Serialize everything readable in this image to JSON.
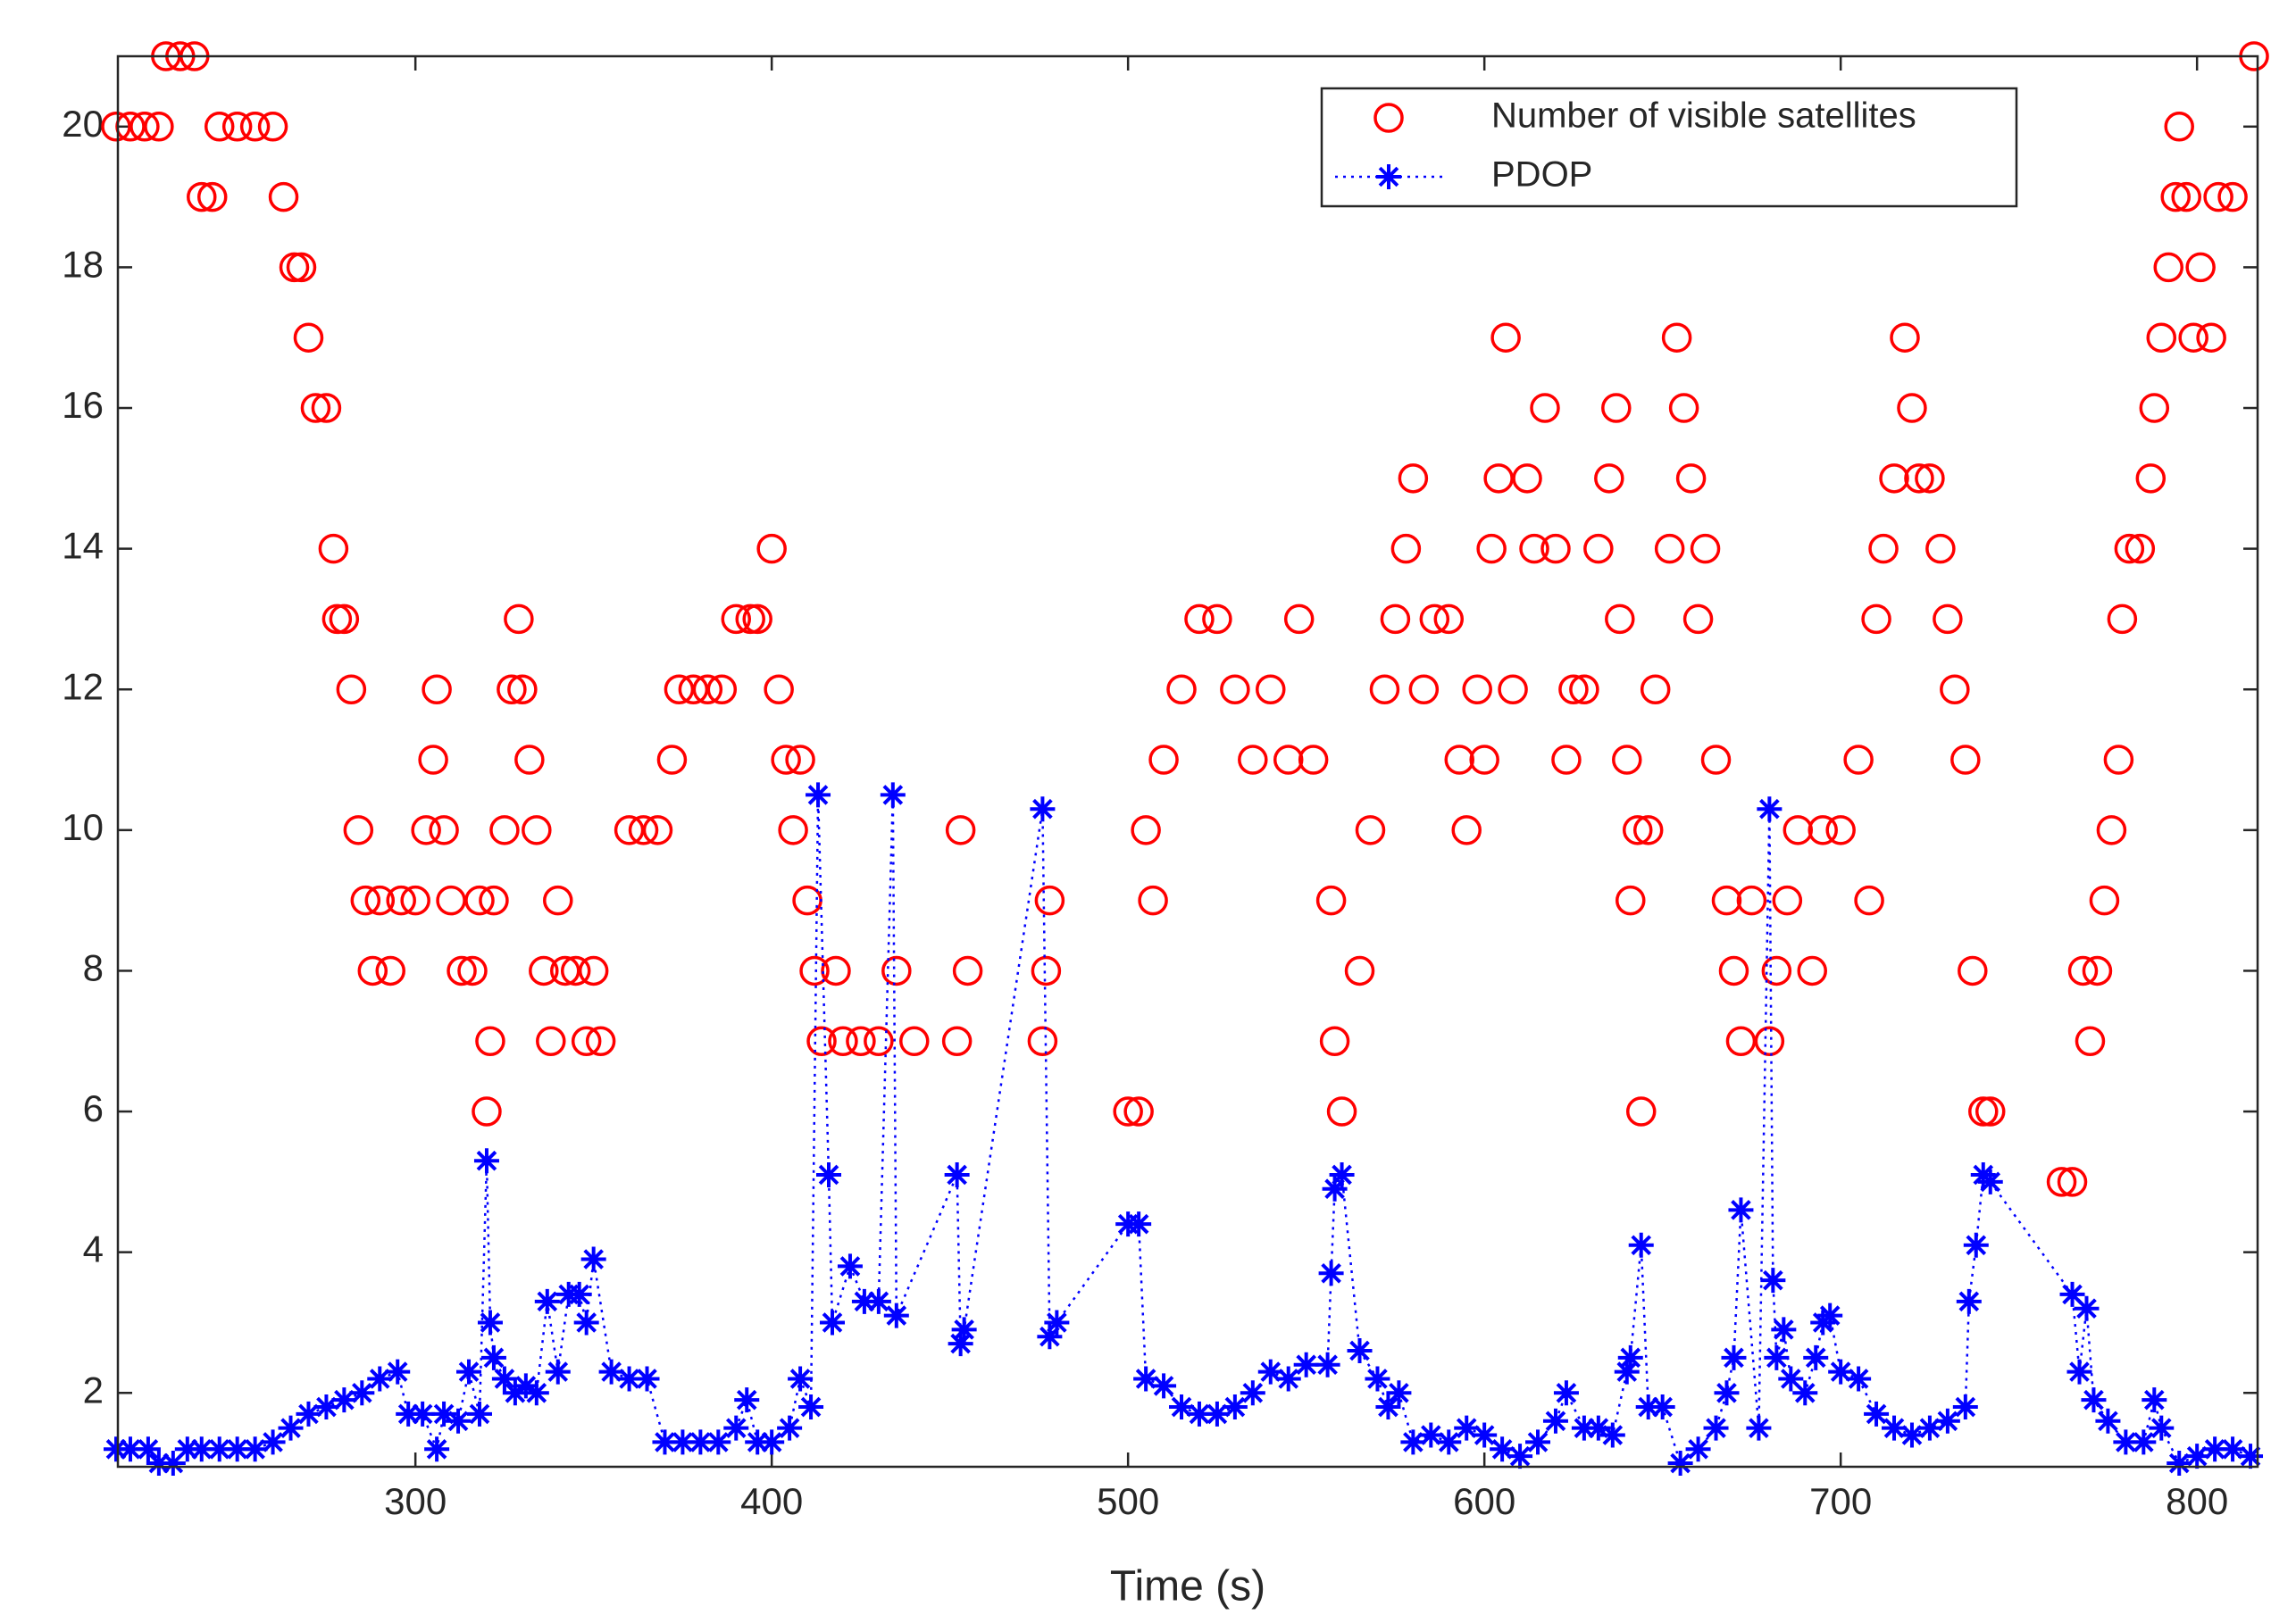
{
  "chart_data": {
    "type": "scatter",
    "x_label": "Time (s)",
    "xlim": [
      216.5,
      817
    ],
    "xticks": [
      300,
      400,
      500,
      600,
      700,
      800
    ],
    "ylim": [
      0.95,
      21
    ],
    "yticks": [
      2,
      4,
      6,
      8,
      10,
      12,
      14,
      16,
      18,
      20
    ],
    "legend": "upper right",
    "series": [
      {
        "name": "Number of visible satellites",
        "color": "#ff0000",
        "marker": "o",
        "linestyle": "none",
        "x": [
          216,
          220,
          224,
          228,
          230,
          234,
          238,
          240,
          243,
          245,
          250,
          255,
          260,
          263,
          266,
          268,
          270,
          272,
          275,
          277,
          278,
          280,
          282,
          284,
          286,
          288,
          290,
          293,
          296,
          300,
          303,
          305,
          306,
          308,
          310,
          313,
          316,
          318,
          320,
          321,
          322,
          325,
          327,
          329,
          330,
          332,
          334,
          336,
          338,
          340,
          342,
          345,
          348,
          350,
          352,
          360,
          364,
          368,
          372,
          374,
          378,
          382,
          386,
          390,
          394,
          396,
          400,
          402,
          404,
          406,
          408,
          410,
          412,
          414,
          418,
          420,
          425,
          430,
          435,
          440,
          452,
          453,
          455,
          476,
          477,
          478,
          500,
          503,
          505,
          507,
          510,
          515,
          520,
          525,
          530,
          535,
          540,
          545,
          548,
          552,
          557,
          558,
          560,
          565,
          568,
          572,
          575,
          578,
          580,
          583,
          586,
          590,
          593,
          595,
          598,
          600,
          602,
          604,
          606,
          608,
          612,
          614,
          617,
          620,
          623,
          625,
          628,
          632,
          635,
          637,
          638,
          640,
          641,
          643,
          644,
          646,
          648,
          652,
          654,
          656,
          658,
          660,
          662,
          665,
          668,
          670,
          672,
          675,
          680,
          682,
          685,
          688,
          692,
          695,
          700,
          705,
          708,
          710,
          712,
          715,
          718,
          720,
          722,
          725,
          728,
          730,
          732,
          735,
          737,
          740,
          742,
          762,
          765,
          768,
          770,
          772,
          774,
          776,
          778,
          779,
          781,
          784,
          787,
          788,
          790,
          792,
          794,
          795,
          797,
          799,
          801,
          804,
          806,
          810,
          816
        ],
        "values": [
          20,
          20,
          20,
          20,
          21,
          21,
          21,
          19,
          19,
          20,
          20,
          20,
          20,
          19,
          18,
          18,
          17,
          16,
          16,
          14,
          13,
          13,
          12,
          10,
          9,
          8,
          9,
          8,
          9,
          9,
          10,
          11,
          12,
          10,
          9,
          8,
          8,
          9,
          6,
          7,
          9,
          10,
          12,
          13,
          12,
          11,
          10,
          8,
          7,
          9,
          8,
          8,
          7,
          8,
          7,
          10,
          10,
          10,
          11,
          12,
          12,
          12,
          12,
          13,
          13,
          13,
          14,
          12,
          11,
          10,
          11,
          9,
          8,
          7,
          8,
          7,
          7,
          7,
          8,
          7,
          7,
          10,
          8,
          7,
          8,
          9,
          6,
          6,
          10,
          9,
          11,
          12,
          13,
          13,
          12,
          11,
          12,
          11,
          13,
          11,
          9,
          7,
          6,
          8,
          10,
          12,
          13,
          14,
          15,
          12,
          13,
          13,
          11,
          10,
          12,
          11,
          14,
          15,
          17,
          12,
          15,
          14,
          16,
          14,
          11,
          12,
          12,
          14,
          15,
          16,
          13,
          11,
          9,
          10,
          6,
          10,
          12,
          14,
          17,
          16,
          15,
          13,
          14,
          11,
          9,
          8,
          7,
          9,
          7,
          8,
          9,
          10,
          8,
          10,
          10,
          11,
          9,
          13,
          14,
          15,
          17,
          16,
          15,
          15,
          14,
          13,
          12,
          11,
          8,
          6,
          6,
          5,
          5,
          8,
          7,
          8,
          9,
          10,
          11,
          13,
          14,
          14,
          15,
          16,
          17,
          18,
          19,
          20,
          19,
          17,
          18,
          17,
          19,
          19,
          21
        ]
      },
      {
        "name": "PDOP",
        "color": "#0000ff",
        "marker": "*",
        "linestyle": "dotted",
        "x": [
          216,
          220,
          225,
          228,
          232,
          236,
          240,
          245,
          250,
          255,
          260,
          265,
          270,
          275,
          280,
          285,
          290,
          295,
          298,
          302,
          306,
          308,
          312,
          315,
          318,
          320,
          321,
          322,
          325,
          328,
          331,
          334,
          337,
          340,
          343,
          346,
          348,
          350,
          355,
          360,
          365,
          370,
          375,
          380,
          385,
          390,
          393,
          396,
          400,
          405,
          408,
          411,
          413,
          416,
          417,
          422,
          426,
          430,
          434,
          435,
          452,
          453,
          454,
          476,
          478,
          480,
          500,
          503,
          505,
          510,
          515,
          520,
          525,
          530,
          535,
          540,
          545,
          550,
          556,
          557,
          558,
          560,
          565,
          570,
          573,
          576,
          580,
          585,
          590,
          595,
          600,
          605,
          610,
          615,
          620,
          623,
          628,
          632,
          636,
          640,
          641,
          644,
          646,
          650,
          655,
          660,
          665,
          668,
          670,
          672,
          677,
          680,
          681,
          682,
          684,
          686,
          690,
          693,
          695,
          697,
          700,
          705,
          710,
          715,
          720,
          725,
          730,
          735,
          736,
          738,
          740,
          742,
          765,
          767,
          769,
          771,
          775,
          780,
          785,
          788,
          790,
          795,
          800,
          805,
          810,
          815
        ],
        "values": [
          1.2,
          1.2,
          1.2,
          1.0,
          1.0,
          1.2,
          1.2,
          1.2,
          1.2,
          1.2,
          1.3,
          1.5,
          1.7,
          1.8,
          1.9,
          2.0,
          2.2,
          2.3,
          1.7,
          1.7,
          1.2,
          1.7,
          1.6,
          2.3,
          1.7,
          5.3,
          3.0,
          2.5,
          2.2,
          2.0,
          2.1,
          2.0,
          3.3,
          2.3,
          3.4,
          3.4,
          3.0,
          3.9,
          2.3,
          2.2,
          2.2,
          1.3,
          1.3,
          1.3,
          1.3,
          1.5,
          1.9,
          1.3,
          1.3,
          1.5,
          2.2,
          1.8,
          10.5,
          5.1,
          3.0,
          3.8,
          3.3,
          3.3,
          10.5,
          3.1,
          5.1,
          2.7,
          2.9,
          10.3,
          2.8,
          3.0,
          4.4,
          4.4,
          2.2,
          2.1,
          1.8,
          1.7,
          1.7,
          1.8,
          2.0,
          2.3,
          2.2,
          2.4,
          2.4,
          3.7,
          4.9,
          5.1,
          2.6,
          2.2,
          1.8,
          2.0,
          1.3,
          1.4,
          1.3,
          1.5,
          1.4,
          1.2,
          1.1,
          1.3,
          1.6,
          2.0,
          1.5,
          1.5,
          1.4,
          2.3,
          2.5,
          4.1,
          1.8,
          1.8,
          1.0,
          1.2,
          1.5,
          2.0,
          2.5,
          4.6,
          1.5,
          10.3,
          3.6,
          2.5,
          2.9,
          2.2,
          2.0,
          2.5,
          3.0,
          3.1,
          2.3,
          2.2,
          1.7,
          1.5,
          1.4,
          1.5,
          1.6,
          1.8,
          3.3,
          4.1,
          5.1,
          5.0,
          3.4,
          2.3,
          3.2,
          1.9,
          1.6,
          1.3,
          1.3,
          1.9,
          1.5,
          1.0,
          1.1,
          1.2,
          1.2,
          1.1
        ]
      }
    ]
  }
}
